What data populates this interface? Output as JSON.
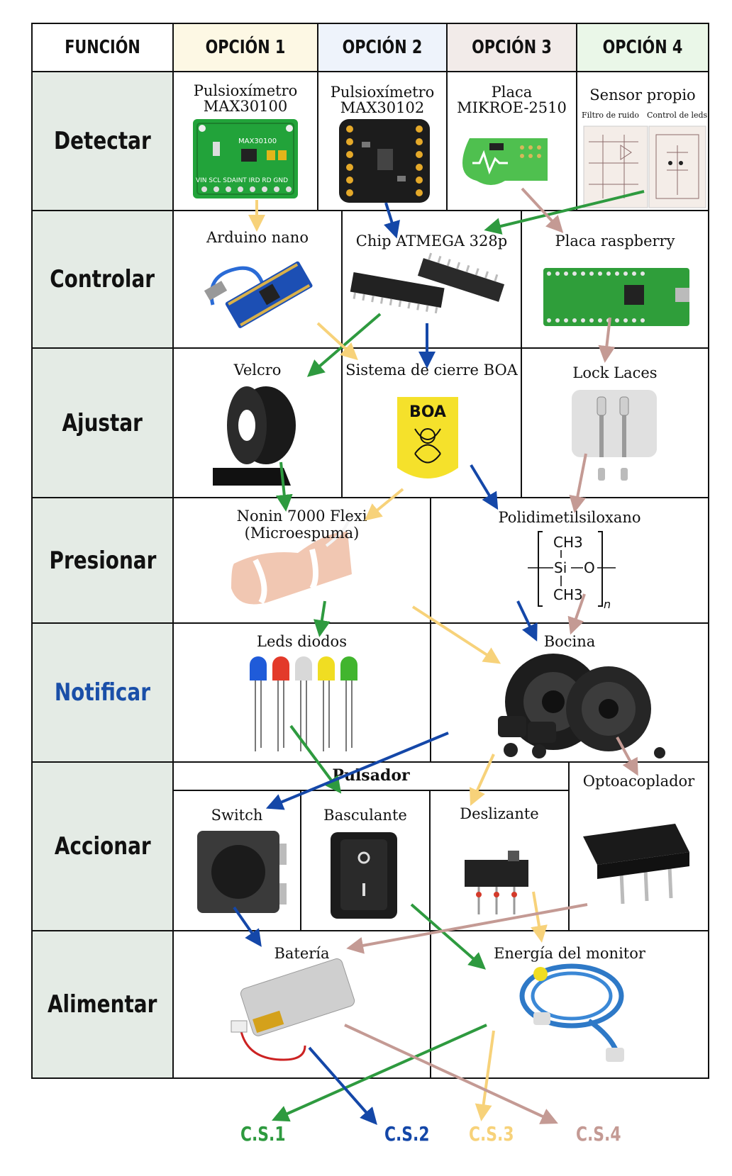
{
  "header": {
    "funcion": "FUNCIÓN",
    "opcion1": "OPCIÓN 1",
    "opcion2": "OPCIÓN 2",
    "opcion3": "OPCIÓN 3",
    "opcion4": "OPCIÓN 4"
  },
  "functions": {
    "detectar": "Detectar",
    "controlar": "Controlar",
    "ajustar": "Ajustar",
    "presionar": "Presionar",
    "notificar": "Notificar",
    "accionar": "Accionar",
    "alimentar": "Alimentar"
  },
  "options": {
    "max30100_l1": "Pulsioxímetro",
    "max30100_l2": "MAX30100",
    "max30100_chip": "MAX30100",
    "max30100_pins": "VIN SCL SDAINT IRD RD GND",
    "max30102_l1": "Pulsioxímetro",
    "max30102_l2": "MAX30102",
    "mikroe_l1": "Placa",
    "mikroe_l2": "MIKROE-2510",
    "sensor_propio": "Sensor propio",
    "filtro": "Filtro de ruido",
    "control_leds": "Control de leds",
    "arduino": "Arduino nano",
    "atmega": "Chip ATMEGA 328p",
    "raspberry": "Placa raspberry",
    "velcro": "Velcro",
    "boa": "Sistema de cierre BOA",
    "boa_logo": "BOA",
    "lock_laces": "Lock Laces",
    "nonin_l1": "Nonin 7000 Flexi",
    "nonin_l2": "(Microespuma)",
    "pdms": "Polidimetilsiloxano",
    "pdms_ch3_top": "CH3",
    "pdms_si": "Si",
    "pdms_o": "O",
    "pdms_ch3_bot": "CH3",
    "pdms_n": "n",
    "leds": "Leds diodos",
    "bocina": "Bocina",
    "pulsador": "Pulsador",
    "switch": "Switch",
    "basculante": "Basculante",
    "deslizante": "Deslizante",
    "optoacoplador": "Optoacoplador",
    "bateria": "Batería",
    "energia": "Energía del monitor"
  },
  "solutions": {
    "cs1": "C.S.1",
    "cs2": "C.S.2",
    "cs3": "C.S.3",
    "cs4": "C.S.4"
  },
  "colors": {
    "opcion1_header": "#fdf8e4",
    "opcion2_header": "#eef3fb",
    "opcion3_header": "#f2ebe9",
    "opcion4_header": "#eaf7e8",
    "function_bg": "#e4ebe5",
    "cs1_green": "#2e9a3f",
    "cs2_blue": "#1447a8",
    "cs3_yellow": "#f7d27a",
    "cs4_rose": "#c49a94",
    "notificar_text": "#1a4fa8"
  }
}
